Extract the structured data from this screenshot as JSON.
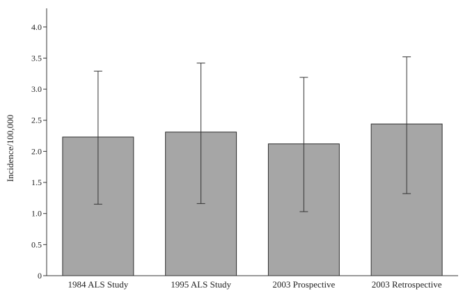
{
  "chart_data": {
    "type": "bar",
    "title": "",
    "xlabel": "",
    "ylabel": "Incidence/100,000",
    "ylim": [
      0,
      4.3
    ],
    "yticks": [
      0,
      0.5,
      1.0,
      1.5,
      2.0,
      2.5,
      3.0,
      3.5,
      4.0
    ],
    "ytick_labels": [
      "0",
      "0.5",
      "1.0",
      "1.5",
      "2.0",
      "2.5",
      "3.0",
      "3.5",
      "4.0"
    ],
    "grid": false,
    "legend": "none",
    "categories": [
      "1984 ALS Study",
      "1995 ALS Study",
      "2003 Prospective",
      "2003 Retrospective"
    ],
    "values": [
      2.23,
      2.31,
      2.12,
      2.44
    ],
    "error_low": [
      1.15,
      1.16,
      1.03,
      1.32
    ],
    "error_high": [
      3.29,
      3.42,
      3.19,
      3.52
    ],
    "colors": {
      "bar_fill": "#a6a6a6",
      "bar_stroke": "#2b2b2b",
      "axis": "#333333",
      "error_bar": "#333333"
    }
  }
}
